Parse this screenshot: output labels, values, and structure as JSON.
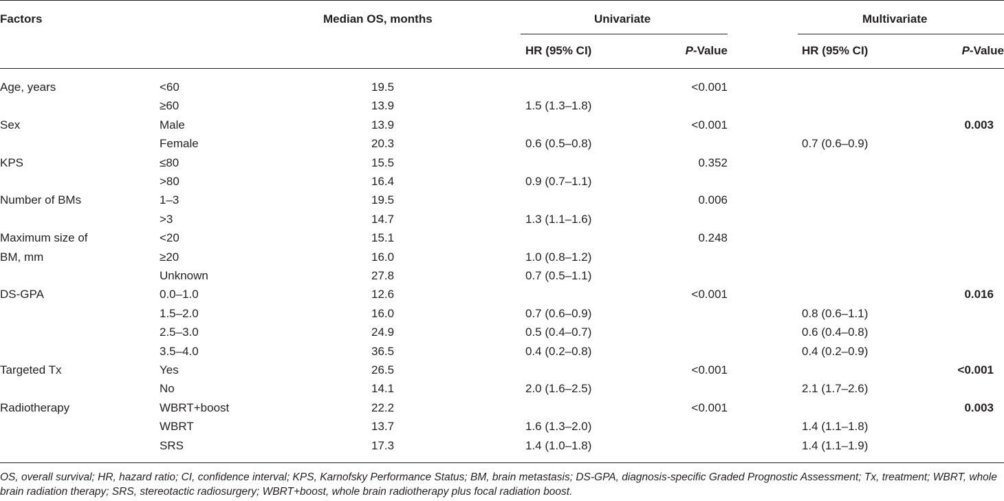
{
  "header": {
    "factors": "Factors",
    "median_os": "Median OS, months",
    "univariate": "Univariate",
    "multivariate": "Multivariate",
    "hr_ci": "HR (95% CI)",
    "p_italic": "P",
    "p_rest": "-Value"
  },
  "rows": [
    {
      "factor": "Age, years",
      "level": "<60",
      "os": "19.5",
      "uhr": "",
      "up": "<0.001",
      "mhr": "",
      "mp": ""
    },
    {
      "factor": "",
      "level": "≥60",
      "os": "13.9",
      "uhr": "1.5 (1.3–1.8)",
      "up": "",
      "mhr": "",
      "mp": ""
    },
    {
      "factor": "Sex",
      "level": "Male",
      "os": "13.9",
      "uhr": "",
      "up": "<0.001",
      "mhr": "",
      "mp": "0.003"
    },
    {
      "factor": "",
      "level": "Female",
      "os": "20.3",
      "uhr": "0.6 (0.5–0.8)",
      "up": "",
      "mhr": "0.7 (0.6–0.9)",
      "mp": ""
    },
    {
      "factor": "KPS",
      "level": "≤80",
      "os": "15.5",
      "uhr": "",
      "up": "0.352",
      "mhr": "",
      "mp": ""
    },
    {
      "factor": "",
      "level": ">80",
      "os": "16.4",
      "uhr": "0.9 (0.7–1.1)",
      "up": "",
      "mhr": "",
      "mp": ""
    },
    {
      "factor": "Number of BMs",
      "level": "1–3",
      "os": "19.5",
      "uhr": "",
      "up": "0.006",
      "mhr": "",
      "mp": ""
    },
    {
      "factor": "",
      "level": ">3",
      "os": "14.7",
      "uhr": "1.3 (1.1–1.6)",
      "up": "",
      "mhr": "",
      "mp": ""
    },
    {
      "factor": "Maximum size of",
      "level": "<20",
      "os": "15.1",
      "uhr": "",
      "up": "0.248",
      "mhr": "",
      "mp": ""
    },
    {
      "factor": "BM, mm",
      "level": "≥20",
      "os": "16.0",
      "uhr": "1.0 (0.8–1.2)",
      "up": "",
      "mhr": "",
      "mp": ""
    },
    {
      "factor": "",
      "level": "Unknown",
      "os": "27.8",
      "uhr": "0.7 (0.5–1.1)",
      "up": "",
      "mhr": "",
      "mp": ""
    },
    {
      "factor": "DS-GPA",
      "level": "0.0–1.0",
      "os": "12.6",
      "uhr": "",
      "up": "<0.001",
      "mhr": "",
      "mp": "0.016"
    },
    {
      "factor": "",
      "level": "1.5–2.0",
      "os": "16.0",
      "uhr": "0.7 (0.6–0.9)",
      "up": "",
      "mhr": "0.8 (0.6–1.1)",
      "mp": ""
    },
    {
      "factor": "",
      "level": "2.5–3.0",
      "os": "24.9",
      "uhr": "0.5 (0.4–0.7)",
      "up": "",
      "mhr": "0.6 (0.4–0.8)",
      "mp": ""
    },
    {
      "factor": "",
      "level": "3.5–4.0",
      "os": "36.5",
      "uhr": "0.4 (0.2–0.8)",
      "up": "",
      "mhr": "0.4 (0.2–0.9)",
      "mp": ""
    },
    {
      "factor": "Targeted Tx",
      "level": "Yes",
      "os": "26.5",
      "uhr": "",
      "up": "<0.001",
      "mhr": "",
      "mp": "<0.001"
    },
    {
      "factor": "",
      "level": "No",
      "os": "14.1",
      "uhr": "2.0 (1.6–2.5)",
      "up": "",
      "mhr": "2.1 (1.7–2.6)",
      "mp": ""
    },
    {
      "factor": "Radiotherapy",
      "level": "WBRT+boost",
      "os": "22.2",
      "uhr": "",
      "up": "<0.001",
      "mhr": "",
      "mp": "0.003"
    },
    {
      "factor": "",
      "level": "WBRT",
      "os": "13.7",
      "uhr": "1.6 (1.3–2.0)",
      "up": "",
      "mhr": "1.4 (1.1–1.8)",
      "mp": ""
    },
    {
      "factor": "",
      "level": "SRS",
      "os": "17.3",
      "uhr": "1.4 (1.0–1.8)",
      "up": "",
      "mhr": "1.4 (1.1–1.9)",
      "mp": ""
    }
  ],
  "footnote": "OS, overall survival; HR, hazard ratio; CI, confidence interval; KPS, Karnofsky Performance Status; BM, brain metastasis; DS-GPA, diagnosis-specific Graded Prognostic Assessment; Tx, treatment; WBRT, whole brain radiation therapy; SRS, stereotactic radiosurgery; WBRT+boost, whole brain radiotherapy plus focal radiation boost."
}
